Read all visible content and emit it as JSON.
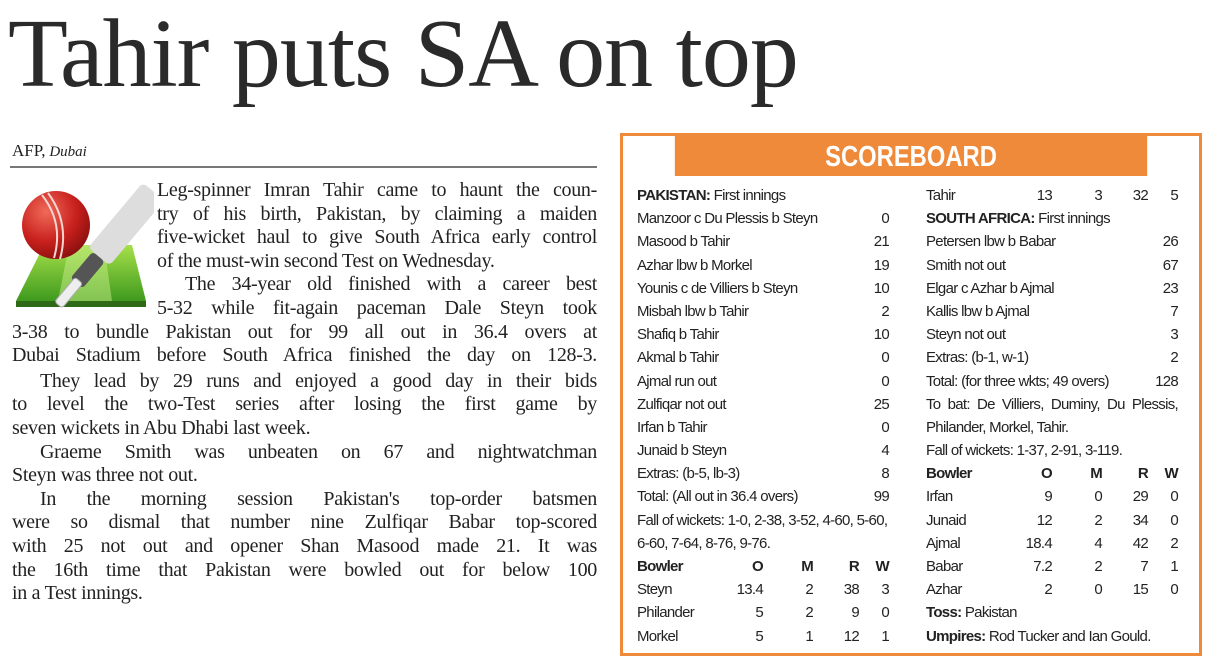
{
  "headline": "Tahir puts SA on top",
  "byline": {
    "agency": "AFP,",
    "place": "Dubai"
  },
  "body_lines": [
    {
      "text": "Leg-spinner Imran Tahir came to haunt the coun-",
      "x": "wrap"
    },
    {
      "text": "try of his birth, Pakistan, by claiming a maiden",
      "x": "wrap"
    },
    {
      "text": "five-wicket haul to give South Africa early control",
      "x": "wrap"
    },
    {
      "text": "of the must-win second Test on Wednesday.",
      "x": "wrap",
      "last": true
    },
    {
      "text": "The 34-year old finished with a career best",
      "x": "wrap-indent"
    },
    {
      "text": "5-32 while fit-again paceman Dale Steyn took",
      "x": "wrap"
    },
    {
      "text": "3-38 to bundle Pakistan out for 99 all out in 36.4 overs at",
      "x": "full"
    },
    {
      "text": "Dubai Stadium before South Africa finished the day on 128-3.",
      "x": "full"
    },
    {
      "text": "They lead by 29 runs and enjoyed a good day in their bids",
      "x": "indent"
    },
    {
      "text": "to level the two-Test series after losing the first game by",
      "x": "full"
    },
    {
      "text": "seven wickets in Abu Dhabi last week.",
      "x": "full",
      "last": true
    },
    {
      "text": "Graeme Smith was unbeaten on 67 and nightwatchman",
      "x": "indent"
    },
    {
      "text": "Steyn was three not out.",
      "x": "full",
      "last": true
    },
    {
      "text": "In the morning session Pakistan's top-order batsmen",
      "x": "indent"
    },
    {
      "text": "were so dismal that number nine Zulfiqar Babar top-scored",
      "x": "full"
    },
    {
      "text": "with 25 not out and opener Shan Masood made 21. It was",
      "x": "full"
    },
    {
      "text": "the 16th time that Pakistan were bowled out for below 100",
      "x": "full"
    },
    {
      "text": "in a Test innings.",
      "x": "full",
      "last": true
    }
  ],
  "icon": "cricket-ball-bat-pitch-icon",
  "scoreboard": {
    "title": "SCOREBOARD",
    "accent_color": "#ef8a3a",
    "left": [
      {
        "type": "heading",
        "bold": "PAKISTAN:",
        "text": " First innings"
      },
      {
        "type": "bat",
        "name": "Manzoor c Du Plessis b Steyn",
        "score": "0"
      },
      {
        "type": "bat",
        "name": "Masood b Tahir",
        "score": "21"
      },
      {
        "type": "bat",
        "name": "Azhar lbw b Morkel",
        "score": "19"
      },
      {
        "type": "bat",
        "name": "Younis c de Villiers b Steyn",
        "score": "10"
      },
      {
        "type": "bat",
        "name": "Misbah lbw b Tahir",
        "score": "2"
      },
      {
        "type": "bat",
        "name": "Shafiq b Tahir",
        "score": "10"
      },
      {
        "type": "bat",
        "name": "Akmal b Tahir",
        "score": "0"
      },
      {
        "type": "bat",
        "name": "Ajmal run out",
        "score": "0"
      },
      {
        "type": "bat",
        "name": "Zulfiqar not out",
        "score": "25"
      },
      {
        "type": "bat",
        "name": "Irfan b Tahir",
        "score": "0"
      },
      {
        "type": "bat",
        "name": "Junaid b Steyn",
        "score": "4"
      },
      {
        "type": "bat",
        "name": "Extras: (b-5, lb-3)",
        "score": "8"
      },
      {
        "type": "bat",
        "name": "Total: (All out in 36.4 overs)",
        "score": "99"
      },
      {
        "type": "text",
        "text": "Fall of wickets: 1-0, 2-38, 3-52, 4-60, 5-60,"
      },
      {
        "type": "text",
        "text": "6-60, 7-64, 8-76, 9-76."
      },
      {
        "type": "bowlhead",
        "cells": [
          "Bowler",
          "O",
          "M",
          "R",
          "W"
        ]
      },
      {
        "type": "bowl",
        "cells": [
          "Steyn",
          "13.4",
          "2",
          "38",
          "3"
        ]
      },
      {
        "type": "bowl",
        "cells": [
          "Philander",
          "5",
          "2",
          "9",
          "0"
        ]
      },
      {
        "type": "bowl",
        "cells": [
          "Morkel",
          "5",
          "1",
          "12",
          "1"
        ]
      }
    ],
    "right": [
      {
        "type": "bowl",
        "cells": [
          "Tahir",
          "13",
          "3",
          "32",
          "5"
        ]
      },
      {
        "type": "heading",
        "bold": "SOUTH AFRICA:",
        "text": " First innings"
      },
      {
        "type": "bat",
        "name": "Petersen lbw b Babar",
        "score": "26"
      },
      {
        "type": "bat",
        "name": "Smith not out",
        "score": "67"
      },
      {
        "type": "bat",
        "name": "Elgar c Azhar b Ajmal",
        "score": "23"
      },
      {
        "type": "bat",
        "name": "Kallis lbw b Ajmal",
        "score": "7"
      },
      {
        "type": "bat",
        "name": "Steyn not out",
        "score": "3"
      },
      {
        "type": "bat",
        "name": "Extras: (b-1, w-1)",
        "score": "2"
      },
      {
        "type": "bat",
        "name": "Total: (for three wkts; 49 overs)",
        "score": "128"
      },
      {
        "type": "just",
        "text": "To bat: De Villiers, Duminy, Du Plessis,"
      },
      {
        "type": "text",
        "text": "Philander, Morkel, Tahir."
      },
      {
        "type": "text",
        "text": "Fall of wickets: 1-37, 2-91, 3-119."
      },
      {
        "type": "bowlhead",
        "cells": [
          "Bowler",
          "O",
          "M",
          "R",
          "W"
        ]
      },
      {
        "type": "bowl",
        "cells": [
          "Irfan",
          "9",
          "0",
          "29",
          "0"
        ]
      },
      {
        "type": "bowl",
        "cells": [
          "Junaid",
          "12",
          "2",
          "34",
          "0"
        ]
      },
      {
        "type": "bowl",
        "cells": [
          "Ajmal",
          "18.4",
          "4",
          "42",
          "2"
        ]
      },
      {
        "type": "bowl",
        "cells": [
          "Babar",
          "7.2",
          "2",
          "7",
          "1"
        ]
      },
      {
        "type": "bowl",
        "cells": [
          "Azhar",
          "2",
          "0",
          "15",
          "0"
        ]
      },
      {
        "type": "heading",
        "bold": "Toss:",
        "text": " Pakistan"
      },
      {
        "type": "heading",
        "bold": "Umpires:",
        "text": " Rod Tucker and Ian Gould."
      }
    ]
  }
}
